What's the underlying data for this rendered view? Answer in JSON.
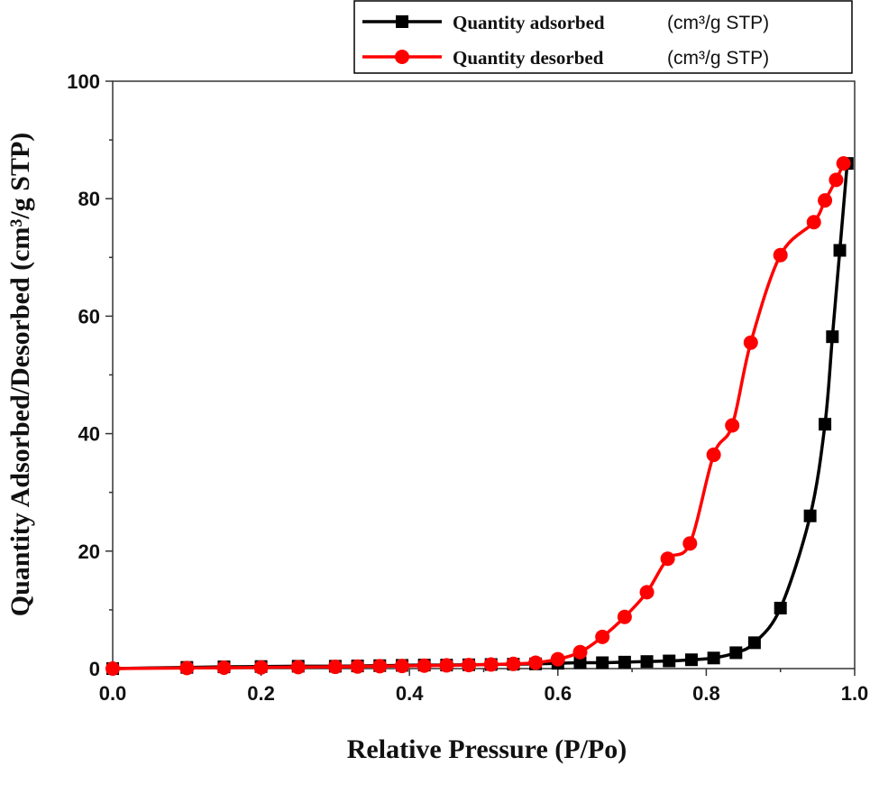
{
  "chart_data": {
    "type": "line",
    "xlabel": "Relative Pressure (P/Po)",
    "ylabel": "Quantity Adsorbed/Desorbed (cm³/g STP)",
    "xlim": [
      0,
      1.0
    ],
    "ylim": [
      0,
      100
    ],
    "xticks": [
      "0.0",
      "0.2",
      "0.4",
      "0.6",
      "0.8",
      "1.0"
    ],
    "yticks": [
      "0",
      "20",
      "40",
      "60",
      "80",
      "100"
    ],
    "grid": false,
    "legend_position": "top-right",
    "series": [
      {
        "name": "Quantity adsorbed",
        "unit": "(cm³/g STP)",
        "color": "#000000",
        "marker": "square",
        "x": [
          0,
          0.1,
          0.15,
          0.2,
          0.25,
          0.3,
          0.33,
          0.36,
          0.39,
          0.42,
          0.45,
          0.48,
          0.51,
          0.54,
          0.57,
          0.6,
          0.63,
          0.66,
          0.69,
          0.72,
          0.75,
          0.78,
          0.81,
          0.84,
          0.865,
          0.9,
          0.94,
          0.96,
          0.97,
          0.98,
          0.99
        ],
        "y": [
          0,
          0.2,
          0.3,
          0.35,
          0.4,
          0.4,
          0.45,
          0.5,
          0.55,
          0.6,
          0.6,
          0.65,
          0.7,
          0.75,
          0.8,
          0.9,
          1.0,
          1.0,
          1.1,
          1.2,
          1.3,
          1.5,
          1.8,
          2.7,
          4.4,
          10.3,
          26,
          41.6,
          56.5,
          71.2,
          86
        ]
      },
      {
        "name": "Quantity desorbed",
        "unit": "(cm³/g STP)",
        "color": "#ff0000",
        "marker": "circle",
        "x": [
          0.985,
          0.975,
          0.96,
          0.945,
          0.9,
          0.86,
          0.835,
          0.81,
          0.778,
          0.748,
          0.72,
          0.69,
          0.66,
          0.63,
          0.6,
          0.57,
          0.54,
          0.51,
          0.48,
          0.45,
          0.42,
          0.39,
          0.36,
          0.33,
          0.3,
          0.25,
          0.2,
          0.15,
          0.1,
          0
        ],
        "y": [
          86,
          83.2,
          79.7,
          76,
          70.4,
          55.5,
          41.4,
          36.4,
          21.3,
          18.7,
          13,
          8.8,
          5.4,
          2.8,
          1.6,
          1.0,
          0.8,
          0.7,
          0.6,
          0.55,
          0.5,
          0.45,
          0.4,
          0.35,
          0.3,
          0.25,
          0.2,
          0.15,
          0.1,
          0
        ]
      }
    ]
  }
}
